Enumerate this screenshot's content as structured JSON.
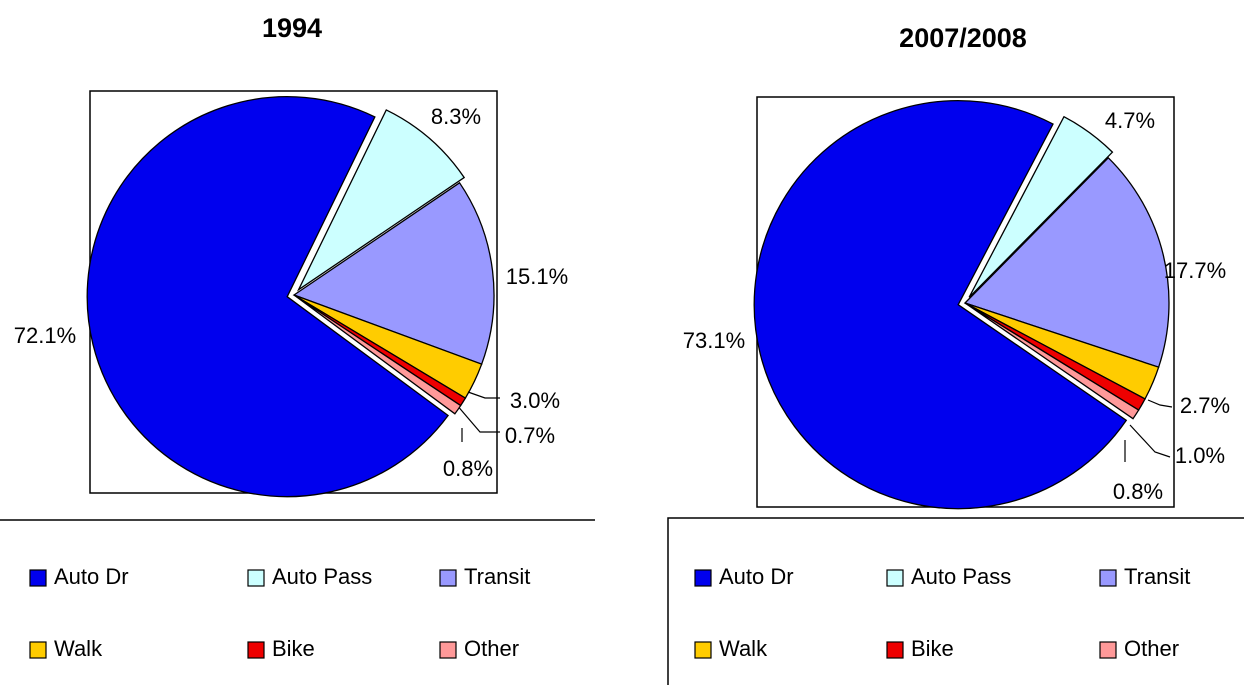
{
  "chart_data": [
    {
      "type": "pie",
      "title": "1994",
      "categories": [
        "Auto Dr",
        "Auto Pass",
        "Transit",
        "Walk",
        "Bike",
        "Other"
      ],
      "values": [
        72.1,
        8.3,
        15.1,
        3.0,
        0.7,
        0.8
      ],
      "value_labels": [
        "72.1%",
        "8.3%",
        "15.1%",
        "3.0%",
        "0.7%",
        "0.8%"
      ],
      "colors": [
        "#0000ee",
        "#ccffff",
        "#9999ff",
        "#ffcc00",
        "#ee0000",
        "#ff9999"
      ]
    },
    {
      "type": "pie",
      "title": "2007/2008",
      "categories": [
        "Auto Dr",
        "Auto Pass",
        "Transit",
        "Walk",
        "Bike",
        "Other"
      ],
      "values": [
        73.1,
        4.7,
        17.7,
        2.7,
        1.0,
        0.8
      ],
      "value_labels": [
        "73.1%",
        "4.7%",
        "17.7%",
        "2.7%",
        "1.0%",
        "0.8%"
      ],
      "colors": [
        "#0000ee",
        "#ccffff",
        "#9999ff",
        "#ffcc00",
        "#ee0000",
        "#ff9999"
      ]
    }
  ]
}
